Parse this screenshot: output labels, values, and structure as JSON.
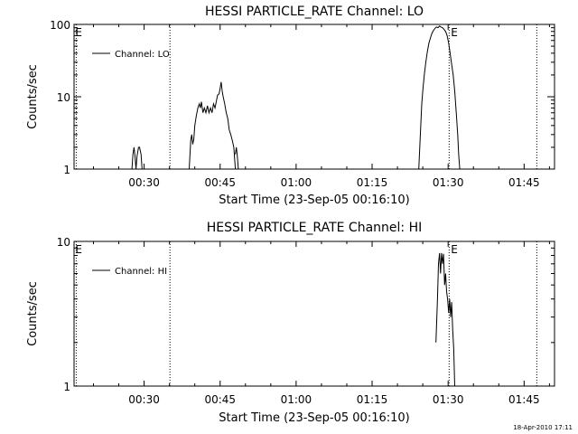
{
  "footer_timestamp": "18-Apr-2010 17:11",
  "chart_data": [
    {
      "type": "line",
      "title": "HESSI PARTICLE_RATE Channel: LO",
      "xlabel": "Start Time (23-Sep-05 00:16:10)",
      "ylabel": "Counts/sec",
      "yscale": "log",
      "ylim": [
        1,
        100
      ],
      "y_tick_labels": [
        "1",
        "10",
        "100"
      ],
      "x_ticks": [
        30,
        45,
        60,
        75,
        90,
        105
      ],
      "x_tick_labels": [
        "00:30",
        "00:45",
        "01:00",
        "01:15",
        "01:30",
        "01:45"
      ],
      "xlim": [
        16.17,
        111.0
      ],
      "legend": {
        "label": "Channel: LO",
        "placement": "top-left"
      },
      "markers": [
        {
          "label": "E",
          "x": 16.6,
          "side": "left"
        },
        {
          "label": "E",
          "x": 35.1,
          "side": "none"
        },
        {
          "label": "E",
          "x": 90.2,
          "side": "right"
        },
        {
          "label": "E",
          "x": 107.5,
          "side": "none"
        }
      ],
      "segments": [
        [
          [
            27.6,
            1.0
          ],
          [
            27.8,
            1.6
          ],
          [
            28.0,
            2.0
          ],
          [
            28.2,
            1.5
          ],
          [
            28.4,
            1.0
          ],
          [
            28.6,
            1.5
          ],
          [
            28.9,
            2.0
          ],
          [
            29.1,
            2.0
          ],
          [
            29.4,
            1.6
          ],
          [
            29.6,
            1.0
          ]
        ],
        [
          [
            38.9,
            1.0
          ],
          [
            39.2,
            2.5
          ],
          [
            39.4,
            3.0
          ],
          [
            39.6,
            2.2
          ],
          [
            39.8,
            2.6
          ],
          [
            40.0,
            4.0
          ],
          [
            40.3,
            5.5
          ],
          [
            40.6,
            7.0
          ],
          [
            40.9,
            8.0
          ],
          [
            41.1,
            7.0
          ],
          [
            41.3,
            8.5
          ],
          [
            41.6,
            6.0
          ],
          [
            41.9,
            7.0
          ],
          [
            42.2,
            6.0
          ],
          [
            42.5,
            7.5
          ],
          [
            42.8,
            6.0
          ],
          [
            43.1,
            7.0
          ],
          [
            43.4,
            6.0
          ],
          [
            43.7,
            8.0
          ],
          [
            44.0,
            7.0
          ],
          [
            44.3,
            9.0
          ],
          [
            44.5,
            10.5
          ],
          [
            44.8,
            11.0
          ],
          [
            45.0,
            13.0
          ],
          [
            45.2,
            16.0
          ],
          [
            45.4,
            12.0
          ],
          [
            45.6,
            10.0
          ],
          [
            45.9,
            8.0
          ],
          [
            46.2,
            6.0
          ],
          [
            46.5,
            5.0
          ],
          [
            46.8,
            3.5
          ],
          [
            47.1,
            3.0
          ],
          [
            47.4,
            2.5
          ],
          [
            47.7,
            2.0
          ],
          [
            48.0,
            1.0
          ]
        ],
        [
          [
            48.0,
            1.6
          ],
          [
            48.2,
            2.0
          ],
          [
            48.4,
            1.5
          ],
          [
            48.6,
            1.0
          ]
        ],
        [
          [
            84.2,
            1.0
          ],
          [
            84.4,
            2.0
          ],
          [
            84.6,
            4.0
          ],
          [
            84.8,
            8.0
          ],
          [
            85.0,
            12.0
          ],
          [
            85.3,
            20.0
          ],
          [
            85.6,
            30.0
          ],
          [
            85.9,
            42.0
          ],
          [
            86.2,
            55.0
          ],
          [
            86.5,
            65.0
          ],
          [
            86.8,
            75.0
          ],
          [
            87.1,
            82.0
          ],
          [
            87.4,
            88.0
          ],
          [
            87.7,
            92.0
          ],
          [
            88.0,
            90.0
          ],
          [
            88.3,
            95.0
          ],
          [
            88.6,
            92.0
          ],
          [
            88.9,
            90.0
          ],
          [
            89.2,
            85.0
          ],
          [
            89.5,
            80.0
          ],
          [
            89.8,
            70.0
          ],
          [
            90.1,
            55.0
          ],
          [
            90.4,
            40.0
          ],
          [
            90.7,
            28.0
          ],
          [
            91.0,
            20.0
          ],
          [
            91.3,
            12.0
          ],
          [
            91.6,
            6.0
          ],
          [
            91.9,
            3.0
          ],
          [
            92.1,
            1.5
          ],
          [
            92.3,
            1.0
          ]
        ]
      ]
    },
    {
      "type": "line",
      "title": "HESSI PARTICLE_RATE Channel: HI",
      "xlabel": "Start Time (23-Sep-05 00:16:10)",
      "ylabel": "Counts/sec",
      "yscale": "log",
      "ylim": [
        1,
        10
      ],
      "y_tick_labels": [
        "1",
        "10"
      ],
      "x_ticks": [
        30,
        45,
        60,
        75,
        90,
        105
      ],
      "x_tick_labels": [
        "00:30",
        "00:45",
        "01:00",
        "01:15",
        "01:30",
        "01:45"
      ],
      "xlim": [
        16.17,
        111.0
      ],
      "legend": {
        "label": "Channel: HI",
        "placement": "top-left"
      },
      "markers": [
        {
          "label": "E",
          "x": 16.6,
          "side": "left"
        },
        {
          "label": "E",
          "x": 35.1,
          "side": "none"
        },
        {
          "label": "E",
          "x": 90.2,
          "side": "right"
        },
        {
          "label": "E",
          "x": 107.5,
          "side": "none"
        }
      ],
      "segments": [
        [
          [
            87.6,
            2.0
          ],
          [
            87.9,
            4.0
          ],
          [
            88.1,
            7.0
          ],
          [
            88.3,
            8.3
          ],
          [
            88.5,
            6.0
          ],
          [
            88.7,
            8.3
          ],
          [
            88.9,
            7.0
          ],
          [
            89.1,
            8.2
          ],
          [
            89.3,
            5.0
          ],
          [
            89.5,
            6.0
          ],
          [
            89.7,
            4.5
          ],
          [
            89.9,
            4.0
          ],
          [
            90.1,
            3.2
          ],
          [
            90.3,
            4.0
          ],
          [
            90.5,
            3.0
          ],
          [
            90.7,
            3.8
          ],
          [
            90.9,
            2.5
          ],
          [
            91.1,
            1.8
          ],
          [
            91.3,
            1.0
          ]
        ]
      ]
    }
  ]
}
